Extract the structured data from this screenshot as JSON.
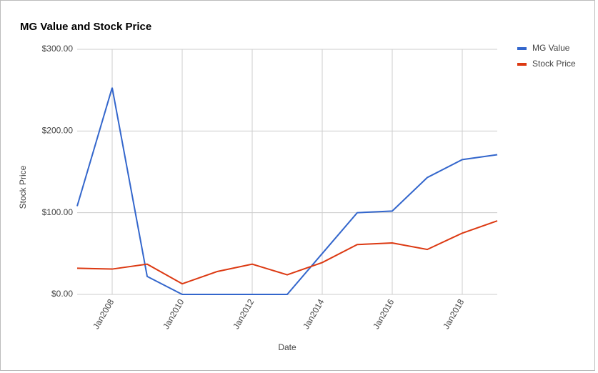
{
  "chart_data": {
    "type": "line",
    "title": "MG Value and Stock Price",
    "x_label": "Date",
    "y_label": "Stock Price",
    "x": [
      2007,
      2008,
      2009,
      2010,
      2011,
      2012,
      2013,
      2014,
      2015,
      2016,
      2017,
      2018,
      2019
    ],
    "xlim": [
      2007,
      2019
    ],
    "xticks": [
      {
        "value": 2008,
        "label": "Jan2008"
      },
      {
        "value": 2010,
        "label": "Jan2010"
      },
      {
        "value": 2012,
        "label": "Jan2012"
      },
      {
        "value": 2014,
        "label": "Jan2014"
      },
      {
        "value": 2016,
        "label": "Jan2016"
      },
      {
        "value": 2018,
        "label": "Jan2018"
      }
    ],
    "ylim": [
      0,
      300
    ],
    "yticks": [
      {
        "value": 0,
        "label": "$0.00"
      },
      {
        "value": 100,
        "label": "$100.00"
      },
      {
        "value": 200,
        "label": "$200.00"
      },
      {
        "value": 300,
        "label": "$300.00"
      }
    ],
    "grid": true,
    "legend": "right",
    "series": [
      {
        "name": "MG Value",
        "color": "#3366cc",
        "values": [
          108,
          253,
          22,
          0,
          0,
          0,
          0,
          50,
          100,
          102,
          143,
          165,
          171
        ]
      },
      {
        "name": "Stock Price",
        "color": "#dc3912",
        "values": [
          32,
          31,
          37,
          13,
          28,
          37,
          24,
          39,
          61,
          63,
          55,
          75,
          90
        ]
      }
    ]
  }
}
